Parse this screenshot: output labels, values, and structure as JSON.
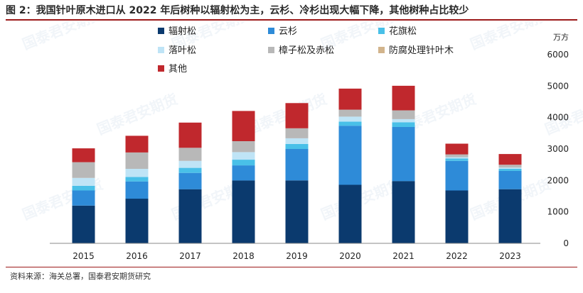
{
  "title": "图 2：我国针叶原木进口从 2022 年后树种以辐射松为主，云杉、冷杉出现大幅下降，其他树种占比较少",
  "source": "资料来源：海关总署，国泰君安期货研究",
  "watermark": "国泰君安期货",
  "chart_data": {
    "type": "bar",
    "stacked": true,
    "categories": [
      "2015",
      "2016",
      "2017",
      "2018",
      "2019",
      "2020",
      "2021",
      "2022",
      "2023"
    ],
    "ylabel": "万方",
    "ylim": [
      0,
      6000
    ],
    "yticks": [
      0,
      1000,
      2000,
      3000,
      4000,
      5000,
      6000
    ],
    "y_axis_side": "right",
    "legend_position": "top",
    "series": [
      {
        "name": "辐射松",
        "color": "#0b3a6e",
        "values": [
          1200,
          1420,
          1720,
          2000,
          2000,
          1860,
          1980,
          1680,
          1720
        ]
      },
      {
        "name": "云杉",
        "color": "#2e8bd8",
        "values": [
          480,
          550,
          520,
          480,
          1000,
          1880,
          1720,
          940,
          580
        ]
      },
      {
        "name": "花旗松",
        "color": "#49c0e8",
        "values": [
          150,
          140,
          160,
          180,
          160,
          130,
          150,
          80,
          70
        ]
      },
      {
        "name": "落叶松",
        "color": "#bfe4f6",
        "values": [
          250,
          260,
          220,
          240,
          180,
          160,
          100,
          40,
          40
        ]
      },
      {
        "name": "樟子松及赤松",
        "color": "#b8b8b8",
        "values": [
          500,
          520,
          420,
          350,
          320,
          220,
          280,
          90,
          90
        ]
      },
      {
        "name": "防腐处理针叶木",
        "color": "#d2b48c",
        "values": [
          0,
          0,
          0,
          0,
          0,
          0,
          0,
          0,
          0
        ]
      },
      {
        "name": "其他",
        "color": "#c0282d",
        "values": [
          440,
          530,
          800,
          960,
          800,
          670,
          780,
          340,
          340
        ]
      }
    ]
  }
}
